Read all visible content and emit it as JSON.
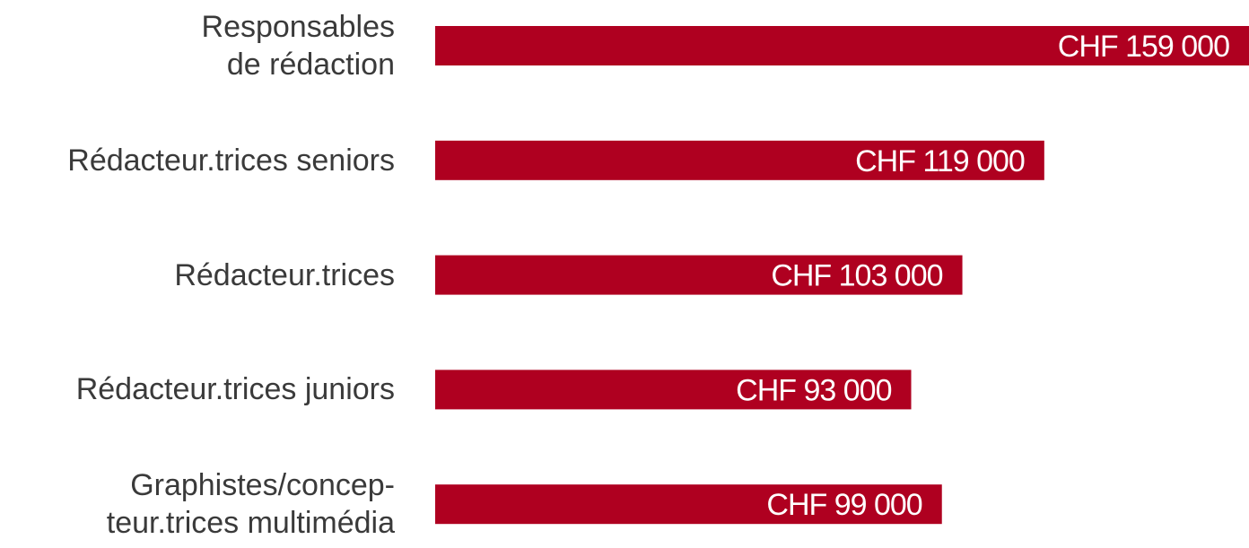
{
  "chart_data": {
    "type": "bar",
    "orientation": "horizontal",
    "categories": [
      "Responsables\nde rédaction",
      "Rédacteur.trices seniors",
      "Rédacteur.trices",
      "Rédacteur.trices juniors",
      "Graphistes/concep-\nteur.trices multimédia"
    ],
    "values": [
      159000,
      119000,
      103000,
      93000,
      99000
    ],
    "value_labels": [
      "CHF 159 000",
      "CHF 119 000",
      "CHF 103 000",
      "CHF 93 000",
      "CHF 99 000"
    ],
    "color": "#af0020"
  }
}
